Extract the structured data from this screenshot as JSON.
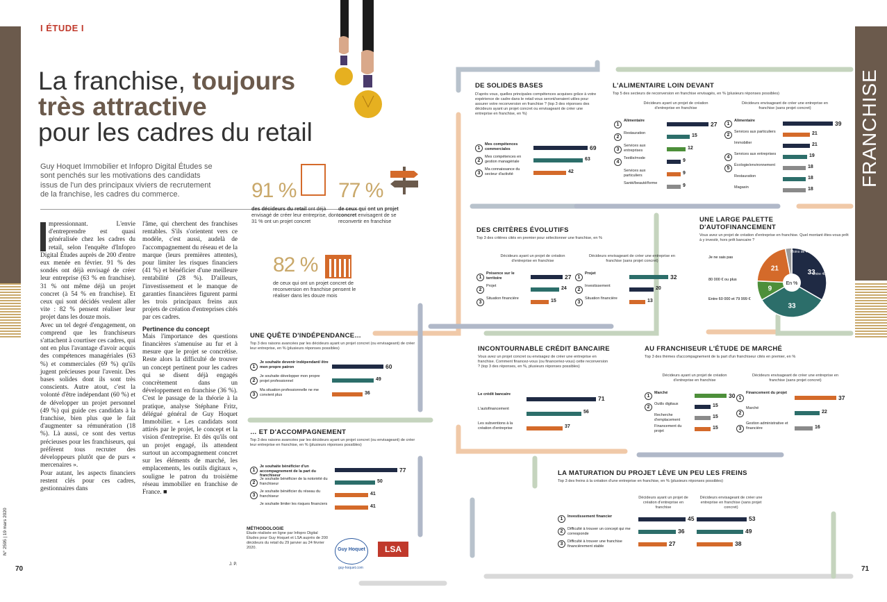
{
  "page": {
    "section": "I ÉTUDE I",
    "side_label": "FRANCHISE",
    "page_left": "70",
    "page_right": "71",
    "issue_left": "N° 2595 | 19 mars 2020",
    "issue_right": "N° 2595 | 19 mars 2020"
  },
  "title": {
    "line1a": "La franchise, ",
    "line1b": "toujours",
    "line2": "très attractive",
    "line3": "pour les cadres du retail"
  },
  "intro": "Guy Hoquet Immobilier et Infopro Digital Études se sont penchés sur les motivations des candidats issus de l'un des principaux viviers de recrutement de la franchise, les cadres du commerce.",
  "col1": "mpressionnant. L'envie d'entreprendre est quasi généralisée chez les cadres du retail, selon l'enquête d'Infopro Digital Études auprès de 200 d'entre eux menée en février. 91 % des sondés ont déjà envisagé de créer leur entreprise (63 % en franchise). 31 % ont même déjà un projet concret (à 54 % en franchise). Et ceux qui sont décidés veulent aller vite : 82 % pensent réaliser leur projet dans les douze mois.",
  "col1b": "Avec un tel degré d'engagement, on comprend que les franchiseurs s'attachent à courtiser ces cadres, qui ont en plus l'avantage d'avoir acquis des compétences managériales (63 %) et commerciales (69 %) qu'ils jugent précieuses pour l'avenir. Des bases solides dont ils sont très conscients. Autre atout, c'est la volonté d'être indépendant (60 %) et de développer un projet personnel (49 %) qui guide ces candidats à la franchise, bien plus que le fait d'augmenter sa rémunération (18 %). Là aussi, ce sont des vertus précieuses pour les franchiseurs, qui préfèrent tous recruter des développeurs plutôt que de purs « mercenaires ».",
  "col1c": "Pour autant, les aspects financiers restent clés pour ces cadres, gestionnaires dans",
  "col2a": "l'âme, qui cherchent des franchises rentables. S'ils s'orientent vers ce modèle, c'est aussi, audelà de l'accompagnement du réseau et de la marque (leurs premières attentes), pour limiter les risques financiers (41 %) et bénéficier d'une meilleure rentabilité (28 %). D'ailleurs, l'investissement et le manque de garanties financières figurent parmi les trois principaux freins aux projets de création d'entreprises cités par ces cadres.",
  "col2_head": "Pertinence du concept",
  "col2b": "Mais l'importance des questions financières s'amenuise au fur et à mesure que le projet se concrétise. Reste alors la difficulté de trouver un concept pertinent pour les cadres qui se disent déjà engagés concrètement dans un développement en franchise (36 %). C'est le passage de la théorie à la pratique, analyse Stéphane Fritz, délégué général de Guy Hoquet Immobilier. « Les candidats sont attirés par le projet, le concept et la vision d'entreprise. Et dès qu'ils ont un projet engagé, ils attendent surtout un accompagnement concret sur les éléments de marché, les emplacements, les outils digitaux », souligne le patron du troisième réseau immobilier en franchise de France. ■",
  "stats": [
    {
      "value": "91 %",
      "bold": "des décideurs du retail",
      "text": "ont déjà envisagé de créer leur entreprise, dont 31 % ont un projet concret"
    },
    {
      "value": "77 %",
      "bold": "de ceux qui ont un projet concret",
      "text": "envisagent de se reconvertir en franchise"
    },
    {
      "value": "82 %",
      "bold": "",
      "text": "de ceux qui ont un projet concret de reconversion en franchise pensent le réaliser dans les douze mois"
    }
  ],
  "quete": {
    "title": "UNE QUÊTE D'INDÉPENDANCE…",
    "sub": "Top 3 des raisons avancées par les décideurs ayant un projet concret (ou envisageant) de créer leur entreprise, en % (plusieurs réponses possibles)",
    "items": [
      {
        "rank": "1",
        "label": "Je souhaite devenir indépendant/ être mon propre patron",
        "value": 60
      },
      {
        "rank": "2",
        "label": "Je souhaite développer mon propre projet professionnel",
        "value": 49
      },
      {
        "rank": "3",
        "label": "Ma situation professionnelle ne me convient plus",
        "value": 36
      }
    ]
  },
  "accomp": {
    "title": "… ET D'ACCOMPAGNEMENT",
    "sub": "Top 3 des raisons avancées par les décideurs ayant un projet concret (ou envisageant) de créer leur entreprise en franchise, en % (plusieurs réponses possibles)",
    "items": [
      {
        "rank": "1",
        "label": "Je souhaite bénéficier d'un accompagnement de la part du franchiseur",
        "value": 77
      },
      {
        "rank": "2",
        "label": "Je souhaite bénéficier de la notoriété du franchiseur",
        "value": 50
      },
      {
        "rank": "3",
        "label": "Je souhaite bénéficier du réseau du franchiseur",
        "value": 41
      },
      {
        "rank": "",
        "label": "Je souhaite limiter les risques financiers",
        "value": 41
      }
    ]
  },
  "methodo": {
    "title": "MÉTHODOLOGIE",
    "text": "Étude réalisée en ligne par Infopro Digital Études pour Guy Hoquet et LSA auprès de 200 décideurs du retail du 29 janvier au 24 février 2020.",
    "logo1": "Guy Hoquet",
    "logo2": "LSA",
    "url": "guy-hoquet.com",
    "sig": "J. P."
  },
  "bases": {
    "title": "DE SOLIDES BASES",
    "sub": "D'après vous, quelles principales compétences acquises grâce à votre expérience de cadre dans le retail vous seront/seraient utiles pour assurer votre reconversion en franchise ? (top 3 des réponses des décideurs ayant un projet concret ou envisageant de créer une entreprise en franchise, en %)",
    "items": [
      {
        "rank": "1",
        "label": "Mes compétences commerciales",
        "value": 69
      },
      {
        "rank": "2",
        "label": "Mes compétences en gestion managériale",
        "value": 63
      },
      {
        "rank": "3",
        "label": "Ma connaissance du secteur d'activité",
        "value": 42
      }
    ]
  },
  "alim": {
    "title": "L'ALIMENTAIRE LOIN DEVANT",
    "sub": "Top 5 des secteurs de reconversion en franchise envisagés, en % (plusieurs réponses possibles)",
    "head_a": "Décideurs ayant un projet de création d'entreprise en franchise",
    "head_b": "Décideurs envisageant de créer une entreprise en franchise (sans projet concret)",
    "a": [
      {
        "rank": "1",
        "label": "Alimentaire",
        "value": 27
      },
      {
        "rank": "2",
        "label": "Restauration",
        "value": 15
      },
      {
        "rank": "3",
        "label": "Services aux entreprises",
        "value": 12
      },
      {
        "rank": "4",
        "label": "Textile/mode",
        "value": 9
      },
      {
        "rank": "",
        "label": "Services aux particuliers",
        "value": 9
      },
      {
        "rank": "",
        "label": "Santé/beauté/forme",
        "value": 9
      }
    ],
    "b": [
      {
        "rank": "1",
        "label": "Alimentaire",
        "value": 39
      },
      {
        "rank": "2",
        "label": "Services aux particuliers",
        "value": 21
      },
      {
        "rank": "",
        "label": "Immobilier",
        "value": 21
      },
      {
        "rank": "4",
        "label": "Services aux entreprises",
        "value": 19
      },
      {
        "rank": "5",
        "label": "Écologie/environnement",
        "value": 18
      },
      {
        "rank": "",
        "label": "Restauration",
        "value": 18
      },
      {
        "rank": "",
        "label": "Magasin",
        "value": 18
      }
    ]
  },
  "criteres": {
    "title": "DES CRITÈRES ÉVOLUTIFS",
    "sub": "Top 3 des critères cités en premier pour sélectionner une franchise, en %",
    "head_a": "Décideurs ayant un projet de création d'entreprise en franchise",
    "head_b": "Décideurs envisageant de créer une entreprise en franchise (sans projet concret)",
    "a": [
      {
        "rank": "1",
        "label": "Présence sur le territoire",
        "value": 27
      },
      {
        "rank": "2",
        "label": "Projet",
        "value": 24
      },
      {
        "rank": "3",
        "label": "Situation financière",
        "value": 15
      }
    ],
    "b": [
      {
        "rank": "1",
        "label": "Projet",
        "value": 32
      },
      {
        "rank": "2",
        "label": "Investissement",
        "value": 20
      },
      {
        "rank": "3",
        "label": "Situation financière",
        "value": 13
      }
    ]
  },
  "palette": {
    "title": "UNE LARGE PALETTE D'AUTOFINANCEMENT",
    "sub": "Vous avez un projet de création d'entreprise en franchise. Quel montant êtes-vous prêt à y investir, hors prêt bancaire ?",
    "unit": "En %",
    "slices": [
      {
        "label": "Moins de 40 000 €",
        "value": 33,
        "color": "#1f2a44"
      },
      {
        "label": "Entre 40 000 et 59 999 €",
        "value": 33,
        "color": "#2c6e6a"
      },
      {
        "label": "Entre 60 000 et 79 999 €",
        "value": 9,
        "color": "#4d8f3a"
      },
      {
        "label": "80 000 € ou plus",
        "value": 21,
        "color": "#d46a2a"
      },
      {
        "label": "Je ne sais pas",
        "value": 3,
        "color": "#9a9a9a"
      }
    ]
  },
  "credit": {
    "title": "INCONTOURNABLE CRÉDIT BANCAIRE",
    "sub": "Vous avez un projet concret ou envisagez de créer une entreprise en franchise. Comment financez-vous (ou financeriez-vous) cette reconversion ? (top 3 des réponses, en %, plusieurs réponses possibles)",
    "items": [
      {
        "label": "Le crédit bancaire",
        "value": 71
      },
      {
        "label": "L'autofinancement",
        "value": 56
      },
      {
        "label": "Les subventions à la création d'entreprise",
        "value": 37
      }
    ]
  },
  "marche": {
    "title": "AU FRANCHISEUR L'ÉTUDE DE MARCHÉ",
    "sub": "Top 3 des thèmes d'accompagnement de la part d'un franchiseur cités en premier, en %",
    "head_a": "Décideurs ayant un projet de création d'entreprise en franchise",
    "head_b": "Décideurs envisageant de créer une entreprise en franchise (sans projet concret)",
    "a": [
      {
        "rank": "1",
        "label": "Marché",
        "value": 30
      },
      {
        "rank": "2",
        "label": "Outils digitaux",
        "value": 15
      },
      {
        "rank": "",
        "label": "Recherche d'emplacement",
        "value": 15
      },
      {
        "rank": "",
        "label": "Financement du projet",
        "value": 15
      }
    ],
    "b": [
      {
        "rank": "1",
        "label": "Financement du projet",
        "value": 37
      },
      {
        "rank": "2",
        "label": "Marché",
        "value": 22
      },
      {
        "rank": "3",
        "label": "Gestion administrative et financière",
        "value": 16
      }
    ]
  },
  "freins": {
    "title": "LA MATURATION DU PROJET LÈVE UN PEU LES FREINS",
    "sub": "Top 3 des freins à la création d'une entreprise en franchise, en % (plusieurs réponses possibles)",
    "head_a": "Décideurs ayant un projet de création d'entreprise en franchise",
    "head_b": "Décideurs envisageant de créer une entreprise en franchise (sans projet concret)",
    "items": [
      {
        "rank": "1",
        "label": "Investissement financier",
        "a": 45,
        "b": 53
      },
      {
        "rank": "2",
        "label": "Difficulté à trouver un concept qui me corresponde",
        "a": 36,
        "b": 49
      },
      {
        "rank": "3",
        "label": "Difficulté à trouver une franchise financièrement stable",
        "a": 27,
        "b": 38
      }
    ]
  },
  "colors": {
    "navy": "#1f2a44",
    "teal": "#2c6e6a",
    "orange": "#d46a2a",
    "green": "#4d8f3a",
    "grey": "#8a8a8a",
    "brown": "#6b5a4c",
    "gold": "#c9a86a"
  }
}
